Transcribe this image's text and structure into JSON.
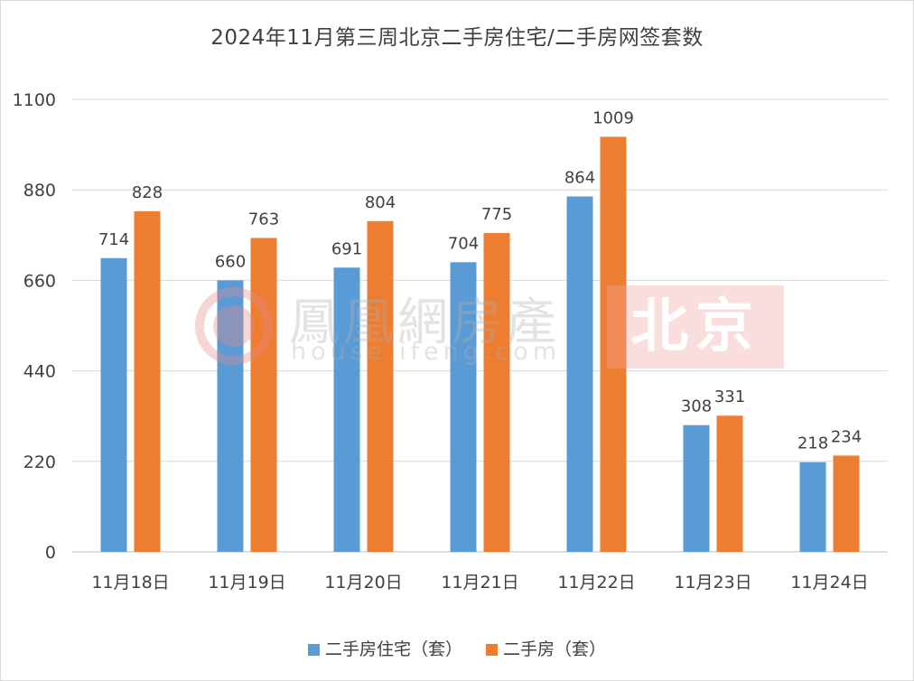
{
  "chart_data": {
    "type": "bar",
    "title": "2024年11月第三周北京二手房住宅/二手房网签套数",
    "categories": [
      "11月18日",
      "11月19日",
      "11月20日",
      "11月21日",
      "11月22日",
      "11月23日",
      "11月24日"
    ],
    "series": [
      {
        "name": "二手房住宅（套）",
        "color": "#5b9bd5",
        "values": [
          714,
          660,
          691,
          704,
          864,
          308,
          218
        ]
      },
      {
        "name": "二手房（套）",
        "color": "#ed7d31",
        "values": [
          828,
          763,
          804,
          775,
          1009,
          331,
          234
        ]
      }
    ],
    "ylim": [
      0,
      1100
    ],
    "yticks": [
      0,
      220,
      440,
      660,
      880,
      1100
    ],
    "grid": true,
    "legend": "bottom"
  },
  "watermark": {
    "brand": "鳳凰網房產",
    "site": "house.ifeng.com",
    "city": "北京"
  }
}
